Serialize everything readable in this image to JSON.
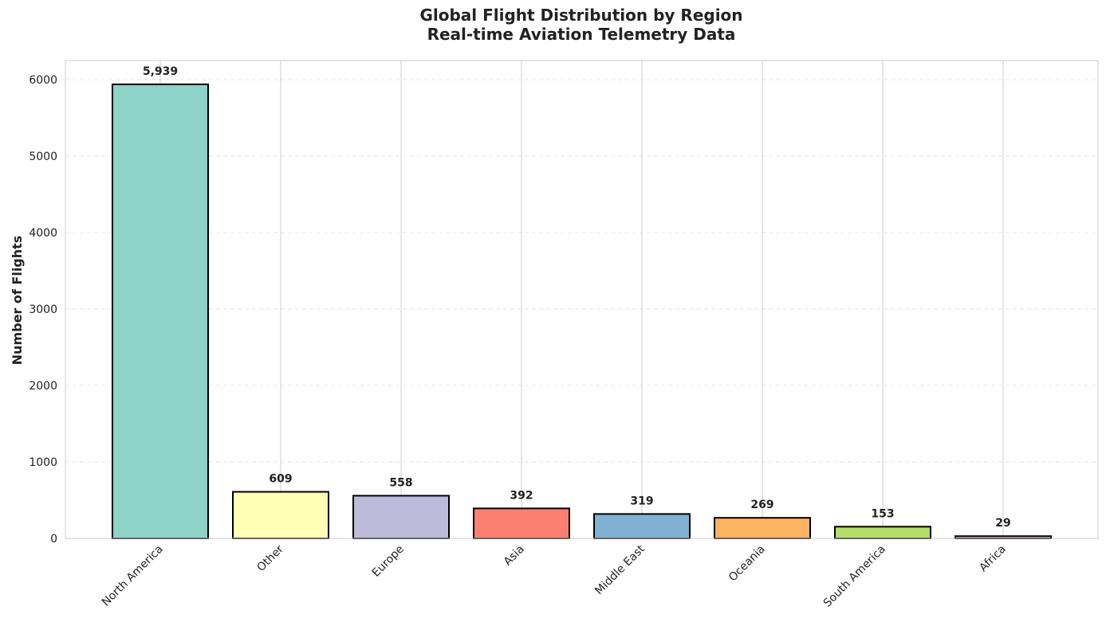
{
  "chart_data": {
    "type": "bar",
    "title_lines": [
      "Global Flight Distribution by Region",
      "Real-time Aviation Telemetry Data"
    ],
    "xlabel": "",
    "ylabel": "Number of Flights",
    "categories": [
      "North America",
      "Other",
      "Europe",
      "Asia",
      "Middle East",
      "Oceania",
      "South America",
      "Africa"
    ],
    "values": [
      5939,
      609,
      558,
      392,
      319,
      269,
      153,
      29
    ],
    "value_labels": [
      "5,939",
      "609",
      "558",
      "392",
      "319",
      "269",
      "153",
      "29"
    ],
    "colors": [
      "#8dd3c7",
      "#ffffb3",
      "#bebada",
      "#fb8072",
      "#80b1d3",
      "#fdb462",
      "#b3de69",
      "#fccde5"
    ],
    "ylim": [
      0,
      6250
    ],
    "yticks": [
      0,
      1000,
      2000,
      3000,
      4000,
      5000,
      6000
    ],
    "grid": true,
    "legend": "none"
  }
}
